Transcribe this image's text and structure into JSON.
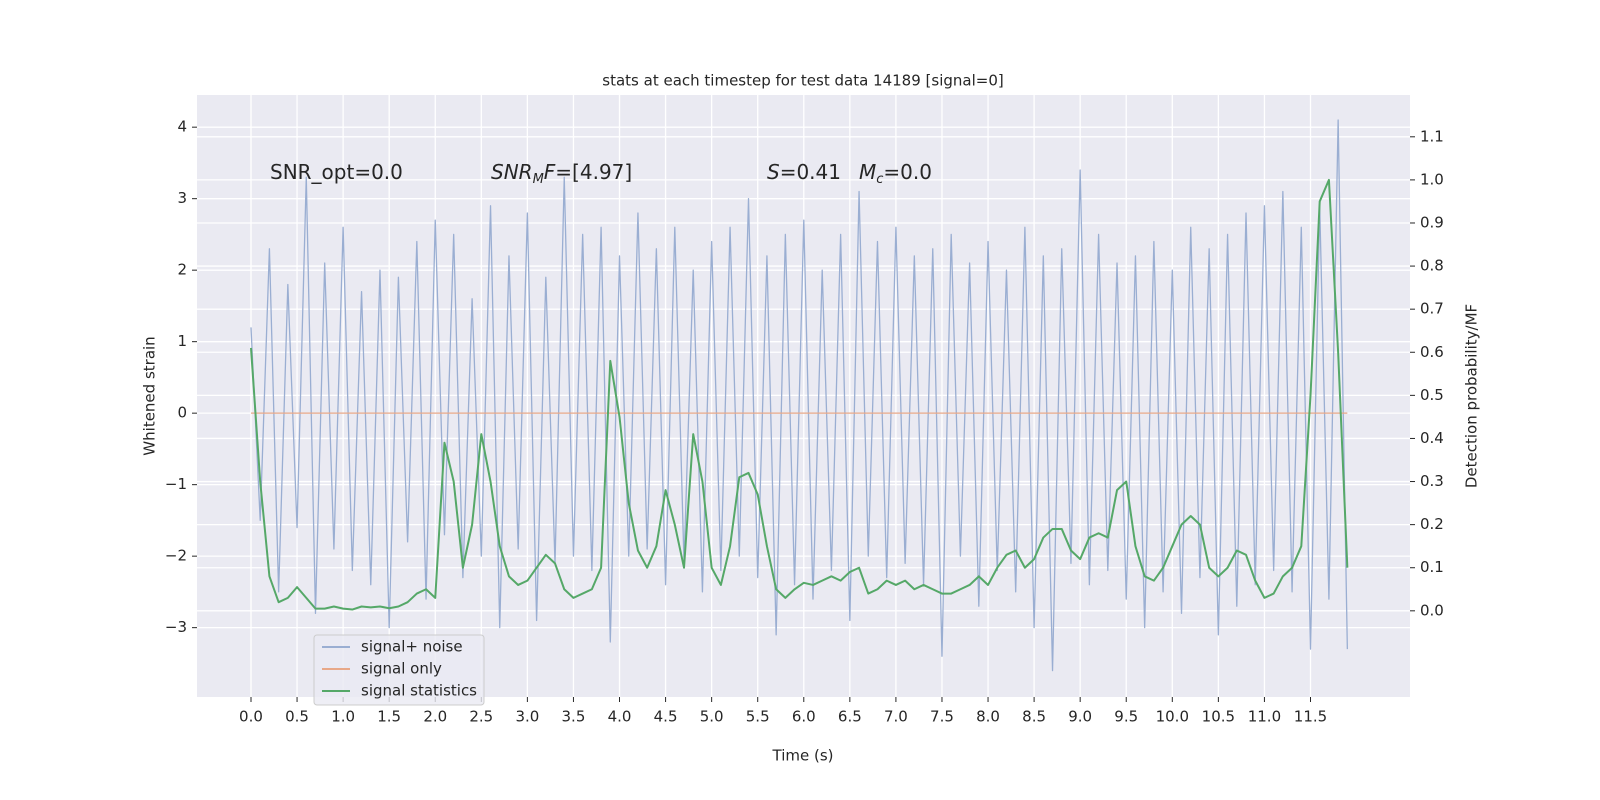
{
  "chart_data": {
    "type": "line",
    "title": "stats at each timestep for test data 14189 [signal=0]",
    "xlabel": "Time (s)",
    "ylabel": "Whitened strain",
    "y2label": "Detection probability/MF",
    "grid": true,
    "legend": "lower left",
    "xlim": [
      -0.586,
      12.58
    ],
    "ylim": [
      -3.97,
      4.45
    ],
    "y2lim": [
      -0.2,
      1.197
    ],
    "xticks": [
      {
        "value": 0,
        "label": "0.0"
      },
      {
        "value": 0.5,
        "label": "0.5"
      },
      {
        "value": 1,
        "label": "1.0"
      },
      {
        "value": 1.5,
        "label": "1.5"
      },
      {
        "value": 2,
        "label": "2.0"
      },
      {
        "value": 2.5,
        "label": "2.5"
      },
      {
        "value": 3,
        "label": "3.0"
      },
      {
        "value": 3.5,
        "label": "3.5"
      },
      {
        "value": 4,
        "label": "4.0"
      },
      {
        "value": 4.5,
        "label": "4.5"
      },
      {
        "value": 5,
        "label": "5.0"
      },
      {
        "value": 5.5,
        "label": "5.5"
      },
      {
        "value": 6,
        "label": "6.0"
      },
      {
        "value": 6.5,
        "label": "6.5"
      },
      {
        "value": 7,
        "label": "7.0"
      },
      {
        "value": 7.5,
        "label": "7.5"
      },
      {
        "value": 8,
        "label": "8.0"
      },
      {
        "value": 8.5,
        "label": "8.5"
      },
      {
        "value": 9,
        "label": "9.0"
      },
      {
        "value": 9.5,
        "label": "9.5"
      },
      {
        "value": 10,
        "label": "10.0"
      },
      {
        "value": 10.5,
        "label": "10.5"
      },
      {
        "value": 11,
        "label": "11.0"
      },
      {
        "value": 11.5,
        "label": "11.5"
      }
    ],
    "yticks": [
      {
        "value": -3,
        "label": "−3"
      },
      {
        "value": -2,
        "label": "−2"
      },
      {
        "value": -1,
        "label": "−1"
      },
      0,
      1,
      2,
      3,
      4
    ],
    "y2ticks": [
      {
        "value": 0,
        "label": "0.0"
      },
      {
        "value": 0.1,
        "label": "0.1"
      },
      {
        "value": 0.2,
        "label": "0.2"
      },
      {
        "value": 0.3,
        "label": "0.3"
      },
      {
        "value": 0.4,
        "label": "0.4"
      },
      {
        "value": 0.5,
        "label": "0.5"
      },
      {
        "value": 0.6,
        "label": "0.6"
      },
      {
        "value": 0.7,
        "label": "0.7"
      },
      {
        "value": 0.8,
        "label": "0.8"
      },
      {
        "value": 0.9,
        "label": "0.9"
      },
      {
        "value": 1,
        "label": "1.0"
      },
      {
        "value": 1.1,
        "label": "1.1"
      }
    ],
    "annotations": [
      {
        "parts": [
          {
            "text": "SNR_opt=0.0"
          }
        ]
      },
      {
        "parts": [
          {
            "text": "SNR",
            "style": "italic"
          },
          {
            "text": "M",
            "style": "sub"
          },
          {
            "text": "F",
            "style": "italic"
          },
          {
            "text": "=[4.97]"
          }
        ]
      },
      {
        "parts": [
          {
            "text": "S",
            "style": "italic"
          },
          {
            "text": "=0.41"
          }
        ]
      },
      {
        "parts": [
          {
            "text": "M",
            "style": "italic"
          },
          {
            "text": "c",
            "style": "sub"
          },
          {
            "text": "=0.0"
          }
        ]
      }
    ],
    "x": [
      0.0,
      0.1,
      0.2,
      0.3,
      0.4,
      0.5,
      0.6,
      0.7,
      0.8,
      0.9,
      1.0,
      1.1,
      1.2,
      1.3,
      1.4,
      1.5,
      1.6,
      1.7,
      1.8,
      1.9,
      2.0,
      2.1,
      2.2,
      2.3,
      2.4,
      2.5,
      2.6,
      2.7,
      2.8,
      2.9,
      3.0,
      3.1,
      3.2,
      3.3,
      3.4,
      3.5,
      3.6,
      3.7,
      3.8,
      3.9,
      4.0,
      4.1,
      4.2,
      4.3,
      4.4,
      4.5,
      4.6,
      4.7,
      4.8,
      4.9,
      5.0,
      5.1,
      5.2,
      5.3,
      5.4,
      5.5,
      5.6,
      5.7,
      5.8,
      5.9,
      6.0,
      6.1,
      6.2,
      6.3,
      6.4,
      6.5,
      6.6,
      6.7,
      6.8,
      6.9,
      7.0,
      7.1,
      7.2,
      7.3,
      7.4,
      7.5,
      7.6,
      7.7,
      7.8,
      7.9,
      8.0,
      8.1,
      8.2,
      8.3,
      8.4,
      8.5,
      8.6,
      8.7,
      8.8,
      8.9,
      9.0,
      9.1,
      9.2,
      9.3,
      9.4,
      9.5,
      9.6,
      9.7,
      9.8,
      9.9,
      10.0,
      10.1,
      10.2,
      10.3,
      10.4,
      10.5,
      10.6,
      10.7,
      10.8,
      10.9,
      11.0,
      11.1,
      11.2,
      11.3,
      11.4,
      11.5,
      11.6,
      11.7,
      11.8,
      11.9
    ],
    "series": [
      {
        "name": "signal+ noise",
        "color": "#9aaed2",
        "values": [
          1.2,
          -1.5,
          2.3,
          -2.5,
          1.8,
          -1.6,
          3.3,
          -2.8,
          2.1,
          -1.9,
          2.6,
          -2.2,
          1.7,
          -2.4,
          2.0,
          -3.0,
          1.9,
          -1.8,
          2.4,
          -2.6,
          2.7,
          -1.7,
          2.5,
          -2.3,
          1.6,
          -2.0,
          2.9,
          -3.0,
          2.2,
          -1.9,
          2.8,
          -2.9,
          1.9,
          -2.1,
          3.3,
          -2.0,
          2.5,
          -2.2,
          2.6,
          -3.2,
          2.2,
          -2.0,
          2.8,
          -1.9,
          2.3,
          -2.4,
          2.6,
          -2.1,
          2.0,
          -2.5,
          2.4,
          -2.2,
          2.6,
          -2.0,
          3.0,
          -2.3,
          2.2,
          -3.1,
          2.5,
          -2.4,
          2.7,
          -2.6,
          2.0,
          -2.2,
          2.5,
          -2.9,
          3.1,
          -2.0,
          2.4,
          -2.3,
          2.6,
          -2.1,
          2.2,
          -2.4,
          2.3,
          -3.4,
          2.5,
          -2.0,
          2.1,
          -2.7,
          2.4,
          -2.2,
          2.0,
          -2.5,
          2.6,
          -3.0,
          2.2,
          -3.6,
          2.3,
          -2.1,
          3.4,
          -2.4,
          2.5,
          -2.2,
          2.1,
          -2.6,
          2.2,
          -3.0,
          2.4,
          -2.5,
          2.0,
          -2.8,
          2.6,
          -2.3,
          2.3,
          -3.1,
          2.5,
          -2.7,
          2.8,
          -2.4,
          2.9,
          -2.2,
          3.1,
          -2.5,
          2.6,
          -3.3,
          2.9,
          -2.6,
          4.1,
          -3.3
        ]
      },
      {
        "name": "signal only",
        "color": "#e8a888",
        "values": [
          0,
          0,
          0,
          0,
          0,
          0,
          0,
          0,
          0,
          0,
          0,
          0,
          0,
          0,
          0,
          0,
          0,
          0,
          0,
          0,
          0,
          0,
          0,
          0,
          0,
          0,
          0,
          0,
          0,
          0,
          0,
          0,
          0,
          0,
          0,
          0,
          0,
          0,
          0,
          0,
          0,
          0,
          0,
          0,
          0,
          0,
          0,
          0,
          0,
          0,
          0,
          0,
          0,
          0,
          0,
          0,
          0,
          0,
          0,
          0,
          0,
          0,
          0,
          0,
          0,
          0,
          0,
          0,
          0,
          0,
          0,
          0,
          0,
          0,
          0,
          0,
          0,
          0,
          0,
          0,
          0,
          0,
          0,
          0,
          0,
          0,
          0,
          0,
          0,
          0,
          0,
          0,
          0,
          0,
          0,
          0,
          0,
          0,
          0,
          0,
          0,
          0,
          0,
          0,
          0,
          0,
          0,
          0,
          0,
          0,
          0,
          0,
          0,
          0,
          0,
          0,
          0,
          0,
          0,
          0
        ]
      },
      {
        "name": "signal statistics",
        "color": "#55a868",
        "axis": "y2",
        "values": [
          0.61,
          0.3,
          0.08,
          0.02,
          0.03,
          0.055,
          0.03,
          0.005,
          0.005,
          0.01,
          0.005,
          0.003,
          0.01,
          0.008,
          0.01,
          0.006,
          0.01,
          0.02,
          0.04,
          0.05,
          0.03,
          0.39,
          0.3,
          0.1,
          0.2,
          0.41,
          0.3,
          0.15,
          0.08,
          0.06,
          0.07,
          0.1,
          0.13,
          0.11,
          0.05,
          0.03,
          0.04,
          0.05,
          0.1,
          0.58,
          0.45,
          0.25,
          0.14,
          0.1,
          0.15,
          0.28,
          0.2,
          0.1,
          0.41,
          0.3,
          0.1,
          0.06,
          0.15,
          0.31,
          0.32,
          0.27,
          0.15,
          0.05,
          0.03,
          0.05,
          0.065,
          0.06,
          0.07,
          0.08,
          0.07,
          0.09,
          0.1,
          0.04,
          0.05,
          0.07,
          0.06,
          0.07,
          0.05,
          0.06,
          0.05,
          0.04,
          0.04,
          0.05,
          0.06,
          0.08,
          0.06,
          0.1,
          0.13,
          0.14,
          0.1,
          0.12,
          0.17,
          0.19,
          0.19,
          0.14,
          0.12,
          0.17,
          0.18,
          0.17,
          0.28,
          0.3,
          0.15,
          0.08,
          0.07,
          0.1,
          0.15,
          0.2,
          0.22,
          0.2,
          0.1,
          0.08,
          0.1,
          0.14,
          0.13,
          0.07,
          0.03,
          0.04,
          0.08,
          0.1,
          0.15,
          0.5,
          0.95,
          1.0,
          0.6,
          0.1
        ]
      }
    ]
  }
}
